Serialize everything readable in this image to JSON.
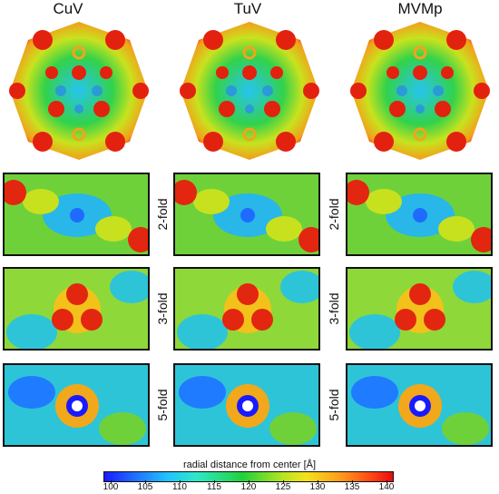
{
  "columns": [
    {
      "title": "CuV"
    },
    {
      "title": "TuV"
    },
    {
      "title": "MVMp"
    }
  ],
  "rows": [
    {
      "label": "2-fold"
    },
    {
      "label": "3-fold"
    },
    {
      "label": "5-fold"
    }
  ],
  "colorbar": {
    "label": "radial distance from center [Å]",
    "ticks": [
      "100",
      "105",
      "110",
      "115",
      "120",
      "125",
      "130",
      "135",
      "140"
    ],
    "colors": [
      "#1a1aff",
      "#21c3ff",
      "#21d23a",
      "#f4e21b",
      "#ff9a1a",
      "#e80d0d"
    ]
  }
}
